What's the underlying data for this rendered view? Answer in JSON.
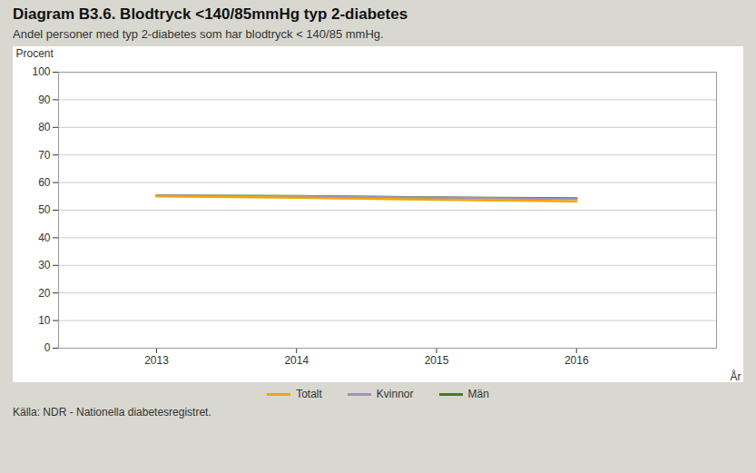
{
  "chart_data": {
    "type": "line",
    "title": "Diagram B3.6. Blodtryck <140/85mmHg typ 2-diabetes",
    "subtitle": "Andel personer med typ 2-diabetes som har blodtryck < 140/85 mmHg.",
    "xlabel": "År",
    "ylabel": "Procent",
    "source": "Källa: NDR - Nationella diabetesregistret.",
    "x": [
      2013,
      2014,
      2015,
      2016
    ],
    "series": [
      {
        "name": "Totalt",
        "color": "#f0a800",
        "values": [
          55.0,
          54.5,
          53.8,
          53.2
        ]
      },
      {
        "name": "Kvinnor",
        "color": "#a090b8",
        "values": [
          55.2,
          55.0,
          54.5,
          54.0
        ]
      },
      {
        "name": "Män",
        "color": "#4a7a25",
        "values": [
          55.3,
          55.1,
          54.6,
          54.3
        ]
      }
    ],
    "xlim": [
      2012.3,
      2017.0
    ],
    "xticks": [
      2013,
      2014,
      2015,
      2016
    ],
    "ylim": [
      0,
      100
    ],
    "yticks": [
      0,
      10,
      20,
      30,
      40,
      50,
      60,
      70,
      80,
      90,
      100
    ],
    "grid": "y",
    "legend": "bottom"
  }
}
